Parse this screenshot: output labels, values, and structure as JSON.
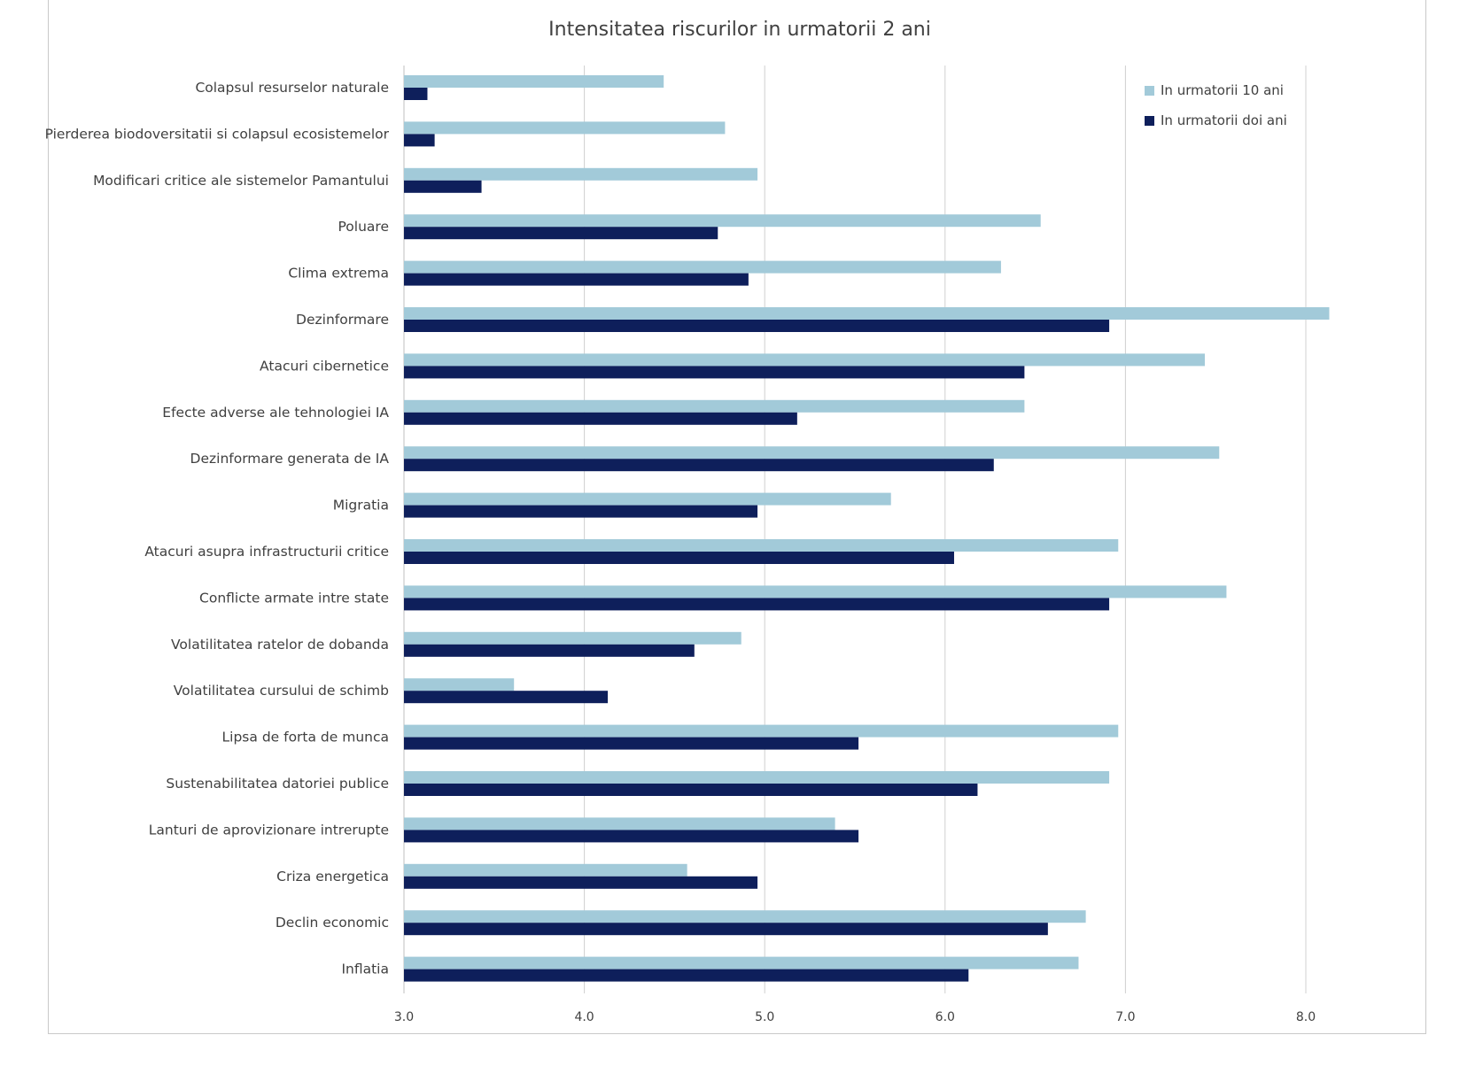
{
  "chart_data": {
    "type": "bar",
    "orientation": "horizontal",
    "title": "Intensitatea riscurilor in urmatorii 2 ani",
    "xlabel": "",
    "ylabel": "",
    "xlim": [
      3.0,
      8.3
    ],
    "xticks": [
      "3.0",
      "4.0",
      "5.0",
      "6.0",
      "7.0",
      "8.0"
    ],
    "grid": true,
    "legend_position": "top-right",
    "categories": [
      "Colapsul resurselor naturale",
      "Pierderea biodoversitatii si colapsul ecosistemelor",
      "Modificari critice ale sistemelor Pamantului",
      "Poluare",
      "Clima extrema",
      "Dezinformare",
      "Atacuri cibernetice",
      "Efecte adverse ale tehnologiei IA",
      "Dezinformare generata de IA",
      "Migratia",
      "Atacuri asupra infrastructurii critice",
      "Conflicte armate intre state",
      "Volatilitatea ratelor de dobanda",
      "Volatilitatea cursului de schimb",
      "Lipsa de forta de munca",
      "Sustenabilitatea datoriei publice",
      "Lanturi de aprovizionare intrerupte",
      "Criza energetica",
      "Declin economic",
      "Inflatia"
    ],
    "series": [
      {
        "name": "In urmatorii 10 ani",
        "color": "#a2cad9",
        "values": [
          4.44,
          4.78,
          4.96,
          6.53,
          6.31,
          8.13,
          7.44,
          6.44,
          7.52,
          5.7,
          6.96,
          7.56,
          4.87,
          3.61,
          6.96,
          6.91,
          5.39,
          4.57,
          6.78,
          6.74
        ]
      },
      {
        "name": "In urmatorii doi ani",
        "color": "#0e1f5b",
        "values": [
          3.13,
          3.17,
          3.43,
          4.74,
          4.91,
          6.91,
          6.44,
          5.18,
          6.27,
          4.96,
          6.05,
          6.91,
          4.61,
          4.13,
          5.52,
          6.18,
          5.52,
          4.96,
          6.57,
          6.13
        ]
      }
    ]
  }
}
